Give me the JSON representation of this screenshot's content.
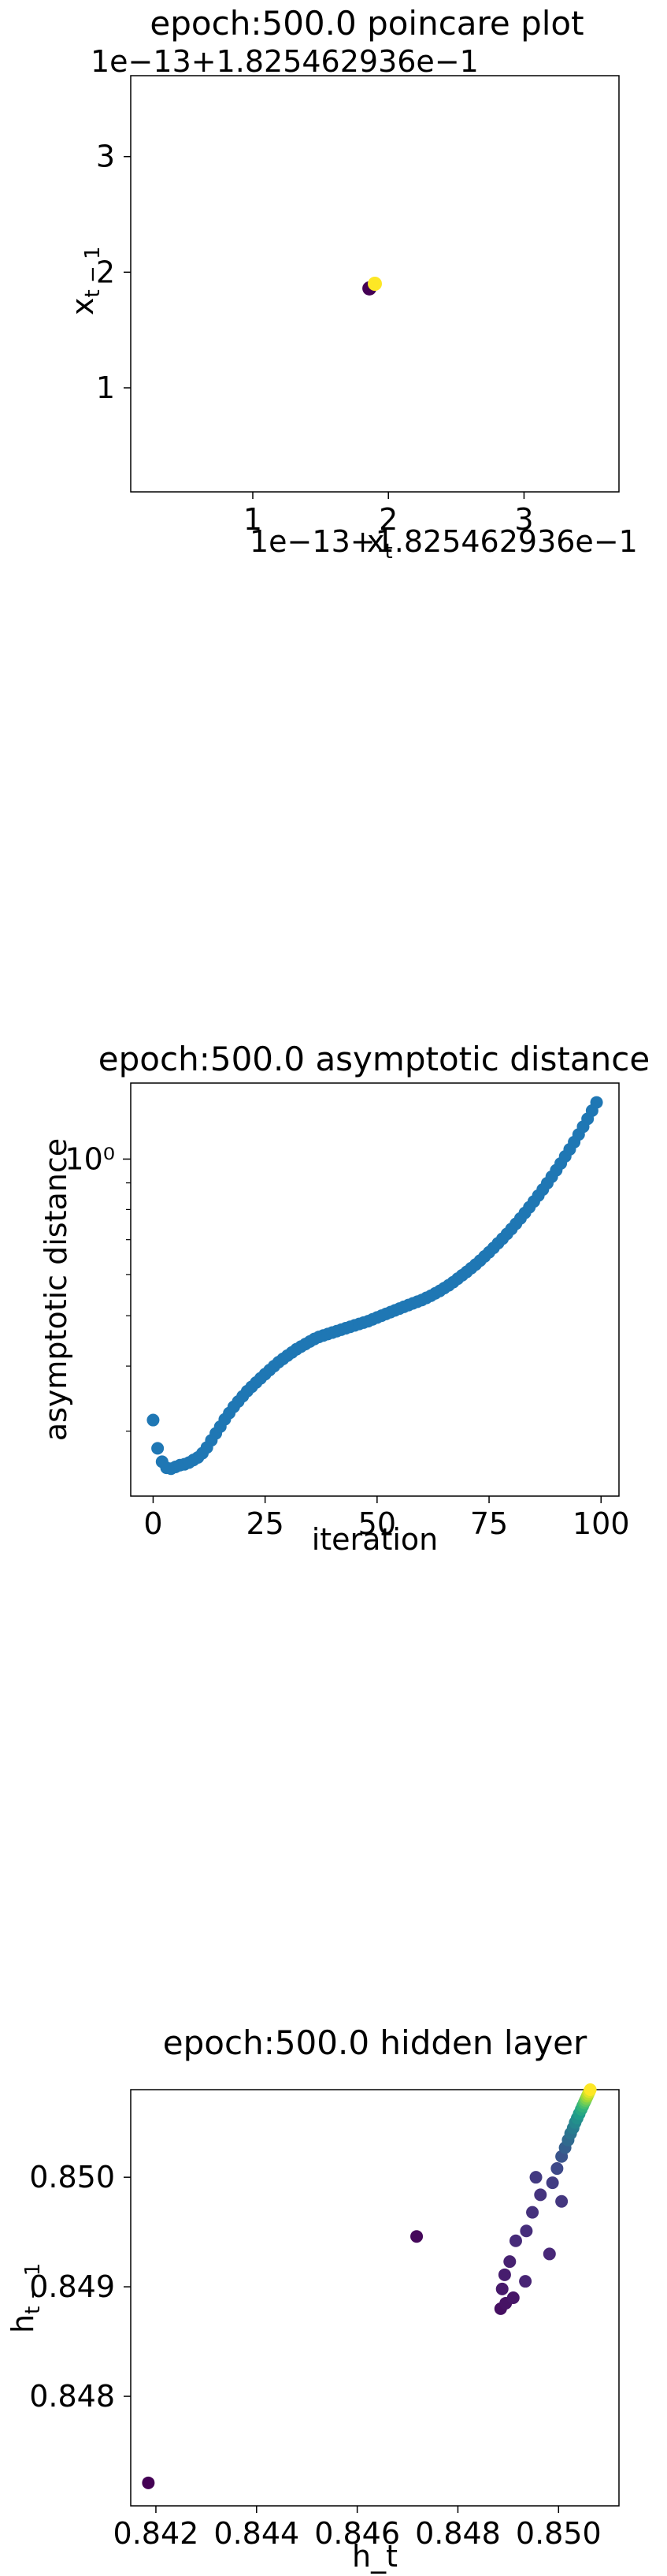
{
  "chart_data": [
    {
      "type": "scatter",
      "title": "epoch:500.0 poincare plot",
      "xlabel": "x_t",
      "ylabel": "x_{t-1}",
      "x_offset_label": "1e−13+1.825462936e−1",
      "y_offset_label": "1e−13+1.825462936e−1",
      "xlim": [
        0.1,
        3.7
      ],
      "ylim": [
        0.1,
        3.7
      ],
      "xticks": [
        "1",
        "2",
        "3"
      ],
      "yticks": [
        "1",
        "2",
        "3"
      ],
      "points": [
        {
          "x": 1.86,
          "y": 1.86,
          "color": "#440154"
        },
        {
          "x": 1.9,
          "y": 1.9,
          "color": "#fde725"
        }
      ]
    },
    {
      "type": "scatter",
      "title": "epoch:500.0 asymptotic distance",
      "xlabel": "iteration",
      "ylabel": "asymptotic distance",
      "yscale": "log",
      "xlim": [
        -5,
        104
      ],
      "xticks": [
        "0",
        "25",
        "50",
        "75",
        "100"
      ],
      "ytick_major": "10⁰",
      "color": "#1f77b4",
      "x": [
        0,
        1,
        2,
        3,
        4,
        5,
        6,
        7,
        8,
        9,
        10,
        11,
        12,
        13,
        14,
        15,
        16,
        17,
        18,
        19,
        20,
        21,
        22,
        23,
        24,
        25,
        26,
        27,
        28,
        29,
        30,
        31,
        32,
        33,
        34,
        35,
        36,
        37,
        38,
        39,
        40,
        41,
        42,
        43,
        44,
        45,
        46,
        47,
        48,
        49,
        50,
        51,
        52,
        53,
        54,
        55,
        56,
        57,
        58,
        59,
        60,
        61,
        62,
        63,
        64,
        65,
        66,
        67,
        68,
        69,
        70,
        71,
        72,
        73,
        74,
        75,
        76,
        77,
        78,
        79,
        80,
        81,
        82,
        83,
        84,
        85,
        86,
        87,
        88,
        89,
        90,
        91,
        92,
        93,
        94,
        95,
        96,
        97,
        98,
        99
      ],
      "y": [
        0.315,
        0.278,
        0.262,
        0.255,
        0.254,
        0.256,
        0.258,
        0.259,
        0.261,
        0.264,
        0.267,
        0.272,
        0.279,
        0.288,
        0.297,
        0.306,
        0.316,
        0.325,
        0.334,
        0.342,
        0.35,
        0.358,
        0.365,
        0.372,
        0.379,
        0.386,
        0.393,
        0.4,
        0.407,
        0.413,
        0.419,
        0.425,
        0.431,
        0.436,
        0.441,
        0.446,
        0.451,
        0.455,
        0.458,
        0.461,
        0.464,
        0.467,
        0.47,
        0.473,
        0.476,
        0.479,
        0.482,
        0.485,
        0.488,
        0.492,
        0.496,
        0.5,
        0.504,
        0.508,
        0.512,
        0.516,
        0.52,
        0.524,
        0.528,
        0.532,
        0.536,
        0.541,
        0.546,
        0.552,
        0.558,
        0.565,
        0.572,
        0.58,
        0.589,
        0.598,
        0.607,
        0.617,
        0.627,
        0.638,
        0.65,
        0.662,
        0.675,
        0.689,
        0.703,
        0.718,
        0.734,
        0.751,
        0.769,
        0.788,
        0.808,
        0.829,
        0.851,
        0.874,
        0.899,
        0.925,
        0.952,
        0.981,
        1.012,
        1.044,
        1.078,
        1.115,
        1.154,
        1.195,
        1.239,
        1.285
      ]
    },
    {
      "type": "scatter",
      "title": "epoch:500.0 hidden layer",
      "xlabel": "h_t",
      "ylabel": "h_{t-1}",
      "xlim": [
        0.8415,
        0.8512
      ],
      "ylim": [
        0.847,
        0.8508
      ],
      "xticks": [
        "0.842",
        "0.844",
        "0.846",
        "0.848",
        "0.850"
      ],
      "yticks": [
        "0.848",
        "0.849",
        "0.850"
      ],
      "points": [
        {
          "x": 0.84185,
          "y": 0.84721,
          "c": 0.0
        },
        {
          "x": 0.84718,
          "y": 0.84946,
          "c": 0.02
        },
        {
          "x": 0.84885,
          "y": 0.8488,
          "c": 0.04
        },
        {
          "x": 0.84895,
          "y": 0.84885,
          "c": 0.05
        },
        {
          "x": 0.8491,
          "y": 0.8489,
          "c": 0.06
        },
        {
          "x": 0.84888,
          "y": 0.84898,
          "c": 0.07
        },
        {
          "x": 0.84893,
          "y": 0.84911,
          "c": 0.08
        },
        {
          "x": 0.84903,
          "y": 0.84923,
          "c": 0.09
        },
        {
          "x": 0.84934,
          "y": 0.84905,
          "c": 0.1
        },
        {
          "x": 0.84982,
          "y": 0.8493,
          "c": 0.11
        },
        {
          "x": 0.84915,
          "y": 0.84942,
          "c": 0.12
        },
        {
          "x": 0.84936,
          "y": 0.84951,
          "c": 0.13
        },
        {
          "x": 0.84948,
          "y": 0.84968,
          "c": 0.14
        },
        {
          "x": 0.84964,
          "y": 0.84984,
          "c": 0.15
        },
        {
          "x": 0.85006,
          "y": 0.84978,
          "c": 0.16
        },
        {
          "x": 0.84955,
          "y": 0.85,
          "c": 0.17
        },
        {
          "x": 0.84988,
          "y": 0.84995,
          "c": 0.18
        },
        {
          "x": 0.84997,
          "y": 0.85008,
          "c": 0.22
        },
        {
          "x": 0.85006,
          "y": 0.85019,
          "c": 0.26
        },
        {
          "x": 0.85013,
          "y": 0.85027,
          "c": 0.3
        },
        {
          "x": 0.85019,
          "y": 0.85034,
          "c": 0.34
        },
        {
          "x": 0.85024,
          "y": 0.8504,
          "c": 0.38
        },
        {
          "x": 0.85029,
          "y": 0.85045,
          "c": 0.42
        },
        {
          "x": 0.85033,
          "y": 0.8505,
          "c": 0.46
        },
        {
          "x": 0.85037,
          "y": 0.85054,
          "c": 0.5
        },
        {
          "x": 0.85041,
          "y": 0.85058,
          "c": 0.55
        },
        {
          "x": 0.85045,
          "y": 0.85062,
          "c": 0.6
        },
        {
          "x": 0.85048,
          "y": 0.85065,
          "c": 0.65
        },
        {
          "x": 0.85051,
          "y": 0.85068,
          "c": 0.7
        },
        {
          "x": 0.85053,
          "y": 0.8507,
          "c": 0.75
        },
        {
          "x": 0.85055,
          "y": 0.85072,
          "c": 0.8
        },
        {
          "x": 0.85057,
          "y": 0.85074,
          "c": 0.85
        },
        {
          "x": 0.85059,
          "y": 0.85076,
          "c": 0.9
        },
        {
          "x": 0.85061,
          "y": 0.85078,
          "c": 0.95
        },
        {
          "x": 0.85063,
          "y": 0.8508,
          "c": 1.0
        }
      ]
    }
  ]
}
